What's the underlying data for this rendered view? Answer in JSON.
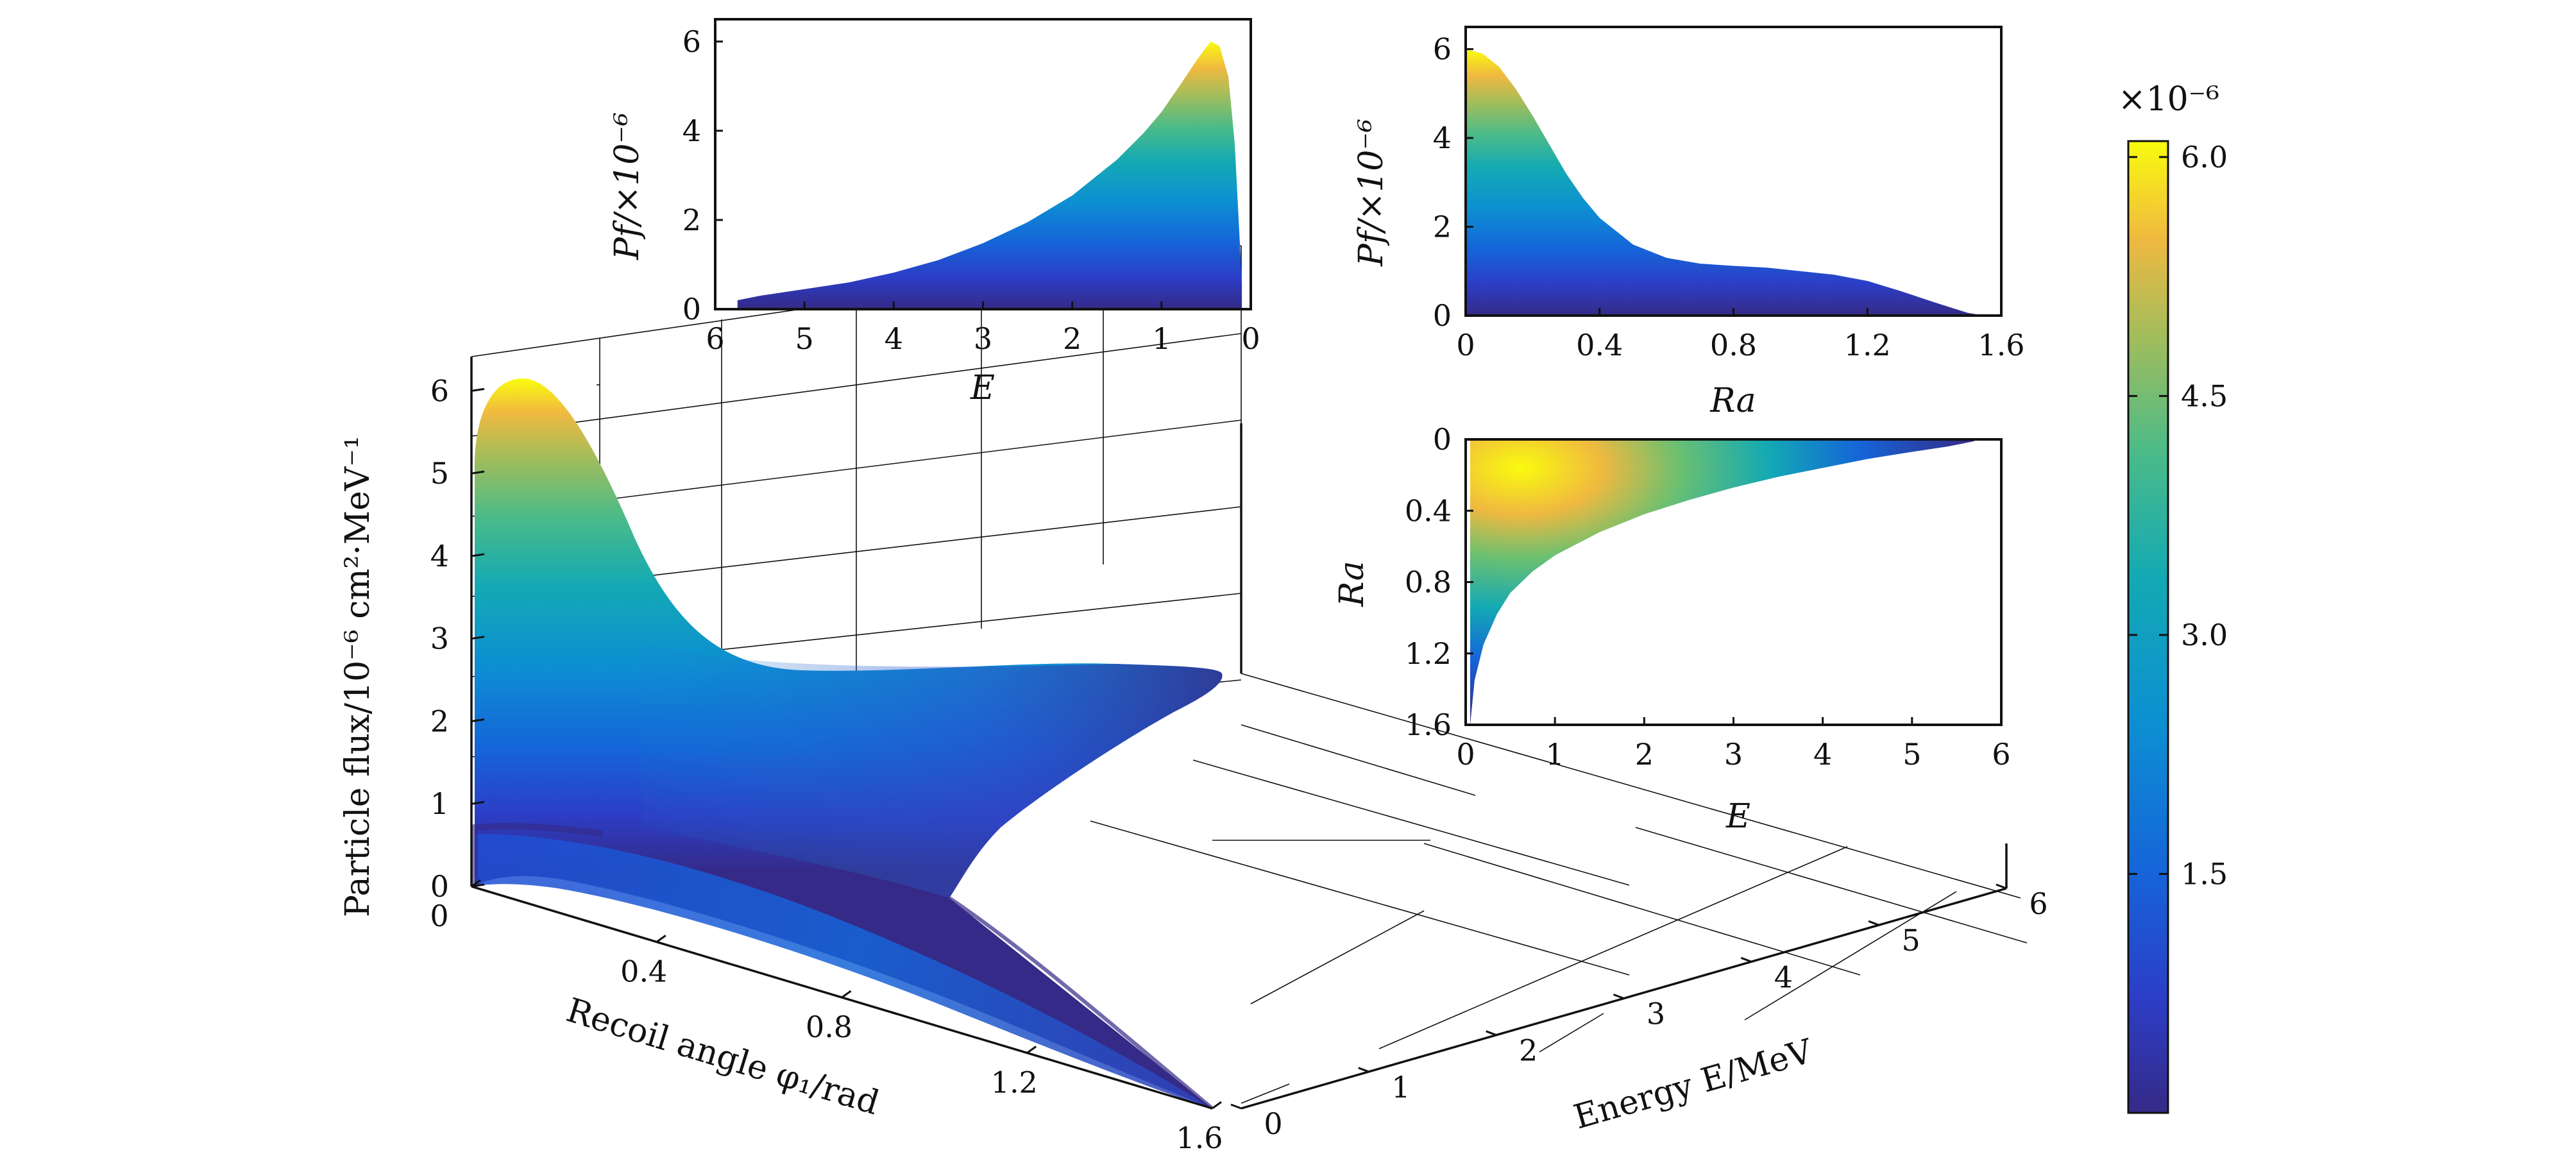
{
  "chart_data": [
    {
      "id": "surface3d",
      "type": "surface",
      "zlabel": "Particle flux/10⁻⁶ cm²·MeV⁻¹",
      "xlabel": "Recoil angle φ₁/rad",
      "ylabel": "Energy E/MeV",
      "x_ticks": [
        "0",
        "0.4",
        "0.8",
        "1.2",
        "1.6"
      ],
      "y_ticks": [
        "0",
        "1",
        "2",
        "3",
        "4",
        "5",
        "6"
      ],
      "z_ticks": [
        "0",
        "1",
        "2",
        "3",
        "4",
        "5",
        "6"
      ],
      "xlim": [
        0,
        1.6
      ],
      "ylim": [
        0,
        6
      ],
      "zlim": [
        0,
        6.5
      ],
      "peak": {
        "angle": 0.05,
        "energy": 0.45,
        "flux": 6.1
      }
    },
    {
      "id": "top-left",
      "type": "area",
      "xlabel": "E",
      "ylabel": "Pf/×10⁻⁶",
      "xlim": [
        6,
        0
      ],
      "ylim": [
        0,
        6.5
      ],
      "x_ticks": [
        "6",
        "5",
        "4",
        "3",
        "2",
        "1",
        "0"
      ],
      "y_ticks": [
        "0",
        "2",
        "4",
        "6"
      ],
      "x": [
        5.75,
        5.5,
        5,
        4.5,
        4,
        3.5,
        3,
        2.5,
        2,
        1.5,
        1.2,
        1,
        0.8,
        0.6,
        0.45,
        0.35,
        0.25,
        0.18,
        0.1
      ],
      "y": [
        0.2,
        0.3,
        0.45,
        0.6,
        0.82,
        1.1,
        1.48,
        1.95,
        2.55,
        3.35,
        3.95,
        4.42,
        5.0,
        5.6,
        6.0,
        5.9,
        5.2,
        3.7,
        0.6
      ]
    },
    {
      "id": "top-right",
      "type": "area",
      "xlabel": "Ra",
      "ylabel": "Pf/×10⁻⁶",
      "xlim": [
        0,
        1.6
      ],
      "ylim": [
        0,
        6.5
      ],
      "x_ticks": [
        "0",
        "0.4",
        "0.8",
        "1.2",
        "1.6"
      ],
      "y_ticks": [
        "0",
        "2",
        "4",
        "6"
      ],
      "x": [
        0,
        0.05,
        0.1,
        0.15,
        0.2,
        0.25,
        0.3,
        0.35,
        0.4,
        0.5,
        0.6,
        0.7,
        0.8,
        0.9,
        1.0,
        1.1,
        1.2,
        1.3,
        1.4,
        1.5,
        1.55
      ],
      "y": [
        6.0,
        5.9,
        5.6,
        5.1,
        4.5,
        3.85,
        3.2,
        2.65,
        2.2,
        1.6,
        1.3,
        1.17,
        1.12,
        1.08,
        1.0,
        0.92,
        0.78,
        0.55,
        0.3,
        0.06,
        0
      ]
    },
    {
      "id": "bottom-right",
      "type": "heatmap",
      "xlabel": "E",
      "ylabel": "Ra",
      "xlim": [
        0,
        6
      ],
      "ylim": [
        1.6,
        0
      ],
      "x_ticks": [
        "0",
        "1",
        "2",
        "3",
        "4",
        "5",
        "6"
      ],
      "y_ticks": [
        "0",
        "0.4",
        "0.8",
        "1.2",
        "1.6"
      ],
      "boundary_E": [
        0.05,
        0.1,
        0.2,
        0.35,
        0.5,
        0.75,
        1,
        1.5,
        2,
        2.5,
        3,
        3.5,
        4,
        4.5,
        5,
        5.4,
        5.7
      ],
      "boundary_Ra": [
        1.6,
        1.35,
        1.15,
        0.98,
        0.86,
        0.74,
        0.65,
        0.52,
        0.42,
        0.34,
        0.27,
        0.21,
        0.16,
        0.11,
        0.07,
        0.04,
        0.01
      ]
    }
  ],
  "colorbar": {
    "exponent_label": "×10⁻⁶",
    "ticks": [
      "1.5",
      "3.0",
      "4.5",
      "6.0"
    ],
    "tick_values": [
      1.5,
      3.0,
      4.5,
      6.0
    ],
    "range": [
      0,
      6.1
    ],
    "colormap": "parula"
  }
}
